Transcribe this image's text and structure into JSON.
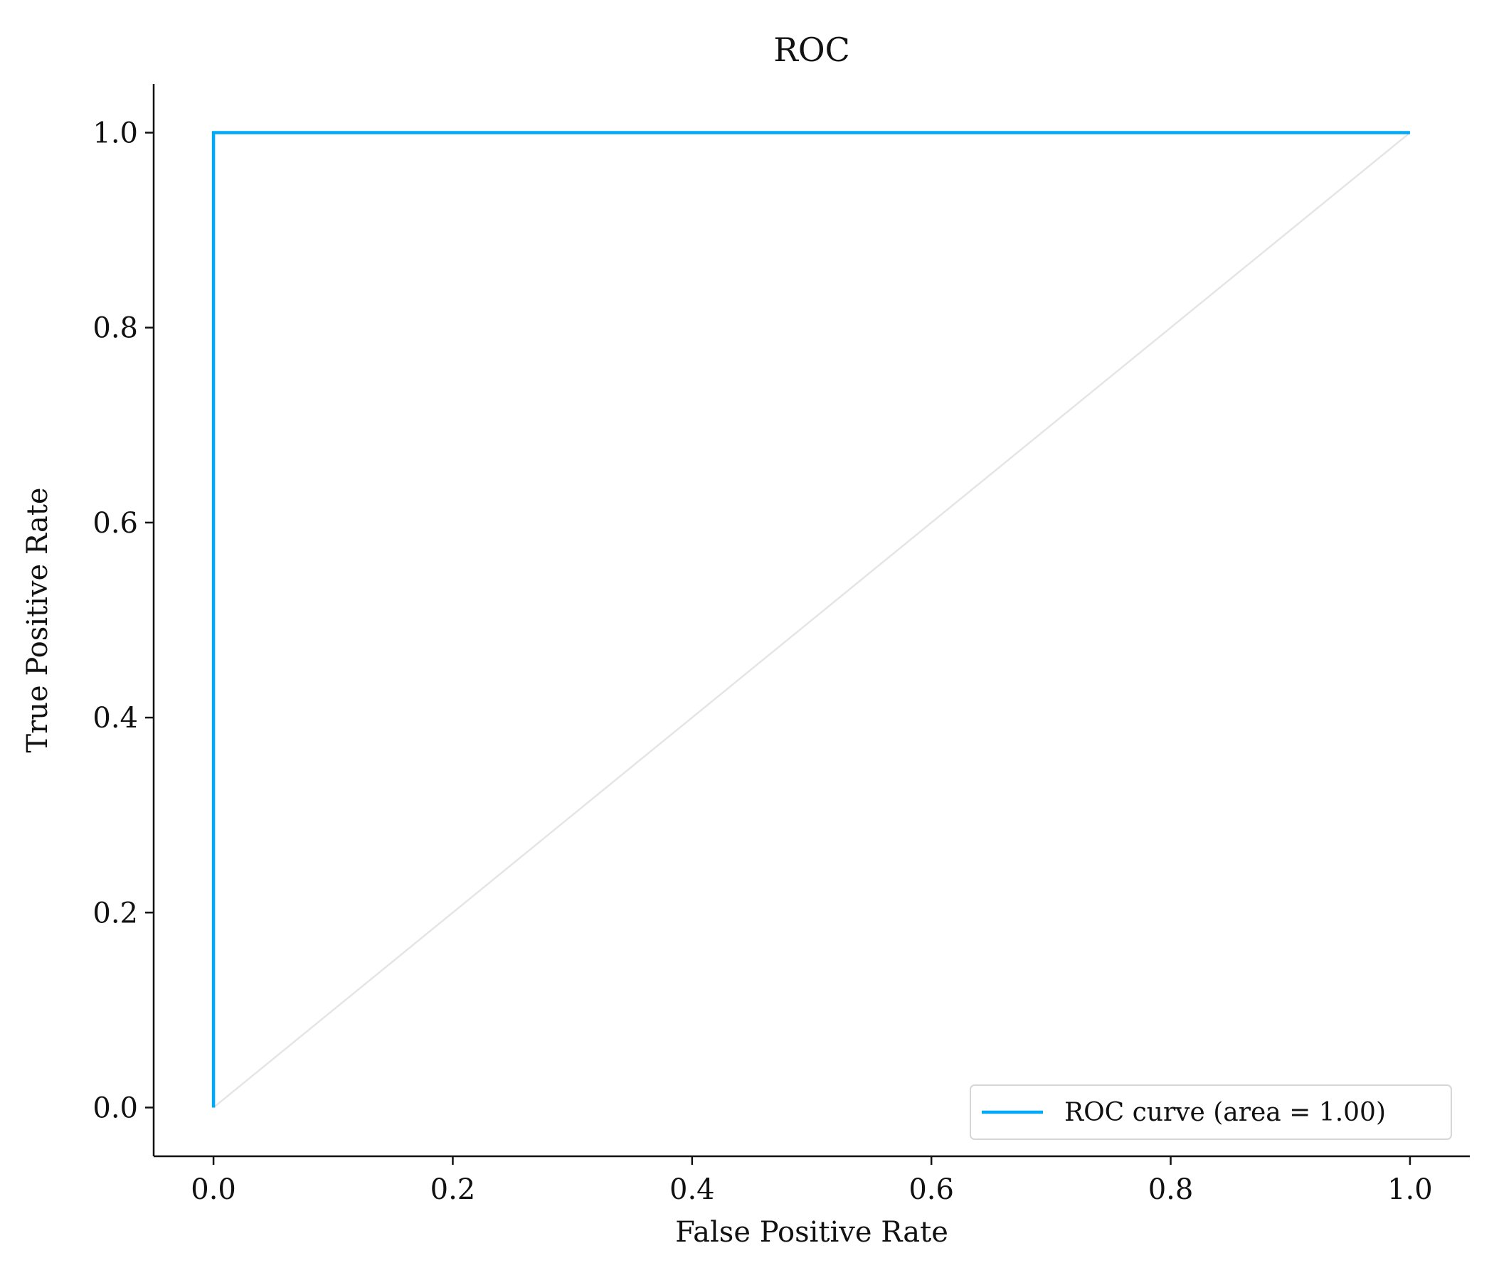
{
  "chart_data": {
    "type": "line",
    "title": "ROC",
    "xlabel": "False Positive Rate",
    "ylabel": "True Positive Rate",
    "xlim": [
      -0.05,
      1.05
    ],
    "ylim": [
      -0.05,
      1.05
    ],
    "xticks": [
      0.0,
      0.2,
      0.4,
      0.6,
      0.8,
      1.0
    ],
    "yticks": [
      0.0,
      0.2,
      0.4,
      0.6,
      0.8,
      1.0
    ],
    "xtick_labels": [
      "0.0",
      "0.2",
      "0.4",
      "0.6",
      "0.8",
      "1.0"
    ],
    "ytick_labels": [
      "0.0",
      "0.2",
      "0.4",
      "0.6",
      "0.8",
      "1.0"
    ],
    "grid": false,
    "legend": {
      "placement": "lower-right"
    },
    "series": [
      {
        "name": "ROC curve (area = 1.00)",
        "color": "#03a9f4",
        "x": [
          0.0,
          0.0,
          1.0
        ],
        "y": [
          0.0,
          1.0,
          1.0
        ],
        "in_legend": true
      },
      {
        "color": "#e5e5e5",
        "x": [
          0.0,
          1.0
        ],
        "y": [
          0.0,
          1.0
        ],
        "in_legend": false
      }
    ]
  }
}
